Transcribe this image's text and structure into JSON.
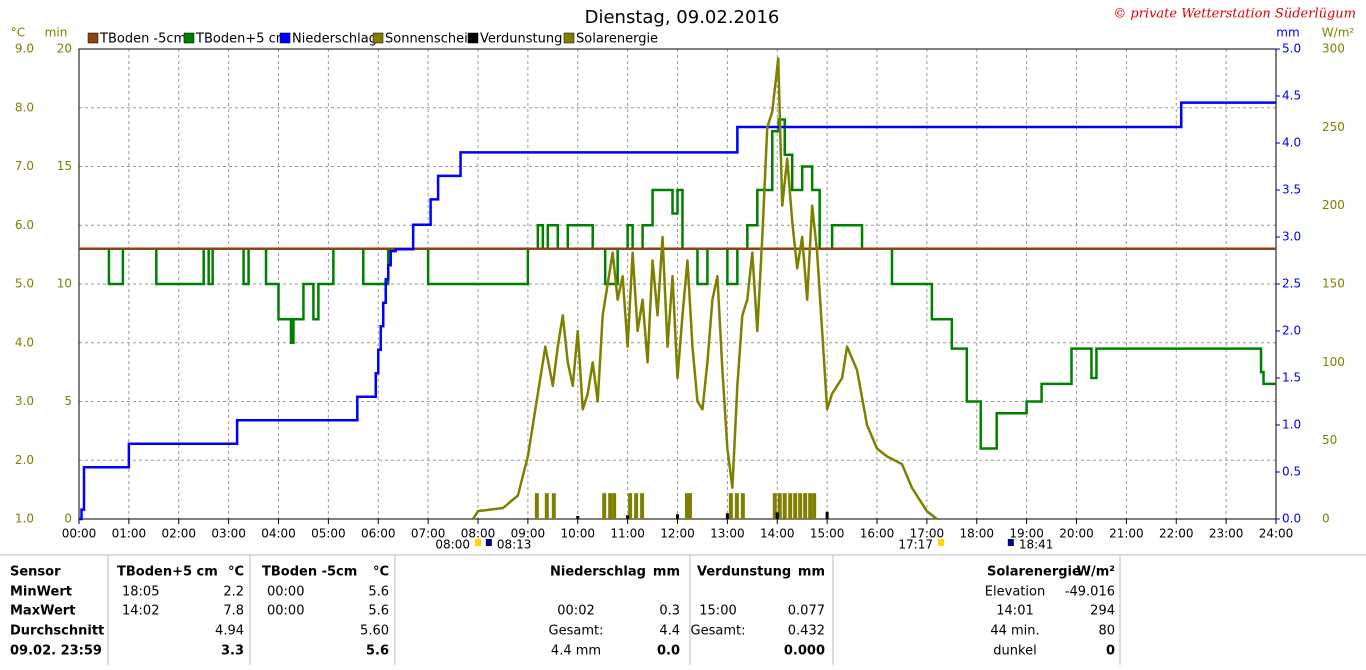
{
  "chart_data": {
    "type": "line",
    "title": "Dienstag, 09.02.2016",
    "copyright": "© private Wetterstation Süderlügum",
    "ylabel": "°C",
    "ylim": [
      1.0,
      9.0
    ],
    "yticks": [
      {
        "value": 1.0,
        "label": "1.0"
      },
      {
        "value": 2.0,
        "label": "2.0"
      },
      {
        "value": 3.0,
        "label": "3.0"
      },
      {
        "value": 4.0,
        "label": "4.0"
      },
      {
        "value": 5.0,
        "label": "5.0"
      },
      {
        "value": 6.0,
        "label": "6.0"
      },
      {
        "value": 7.0,
        "label": "7.0"
      },
      {
        "value": 8.0,
        "label": "8.0"
      },
      {
        "value": 9.0,
        "label": "9.0"
      }
    ],
    "y3label": "min",
    "y3lim": [
      0,
      20
    ],
    "y3ticks": [
      0,
      5,
      10,
      15,
      20
    ],
    "y2label": "mm",
    "y2lim": [
      0.0,
      5.0
    ],
    "y2ticks": [
      {
        "value": 0.0,
        "label": "0.0"
      },
      {
        "value": 0.5,
        "label": "0.5"
      },
      {
        "value": 1.0,
        "label": "1.0"
      },
      {
        "value": 1.5,
        "label": "1.5"
      },
      {
        "value": 2.0,
        "label": "2.0"
      },
      {
        "value": 2.5,
        "label": "2.5"
      },
      {
        "value": 3.0,
        "label": "3.0"
      },
      {
        "value": 3.5,
        "label": "3.5"
      },
      {
        "value": 4.0,
        "label": "4.0"
      },
      {
        "value": 4.5,
        "label": "4.5"
      },
      {
        "value": 5.0,
        "label": "5.0"
      }
    ],
    "y4label": "W/m²",
    "y4lim": [
      0,
      300
    ],
    "y4ticks": [
      0,
      50,
      100,
      150,
      200,
      250,
      300
    ],
    "xlim": [
      0,
      24
    ],
    "xticks": [
      {
        "value": 0,
        "label": "00:00"
      },
      {
        "value": 1,
        "label": "01:00"
      },
      {
        "value": 2,
        "label": "02:00"
      },
      {
        "value": 3,
        "label": "03:00"
      },
      {
        "value": 4,
        "label": "04:00"
      },
      {
        "value": 5,
        "label": "05:00"
      },
      {
        "value": 6,
        "label": "06:00"
      },
      {
        "value": 7,
        "label": "07:00"
      },
      {
        "value": 8,
        "label": "08:00"
      },
      {
        "value": 9,
        "label": "09:00"
      },
      {
        "value": 10,
        "label": "10:00"
      },
      {
        "value": 11,
        "label": "11:00"
      },
      {
        "value": 12,
        "label": "12:00"
      },
      {
        "value": 13,
        "label": "13:00"
      },
      {
        "value": 14,
        "label": "14:00"
      },
      {
        "value": 15,
        "label": "15:00"
      },
      {
        "value": 16,
        "label": "16:00"
      },
      {
        "value": 17,
        "label": "17:00"
      },
      {
        "value": 18,
        "label": "18:00"
      },
      {
        "value": 19,
        "label": "19:00"
      },
      {
        "value": 20,
        "label": "20:00"
      },
      {
        "value": 21,
        "label": "21:00"
      },
      {
        "value": 22,
        "label": "22:00"
      },
      {
        "value": 23,
        "label": "23:00"
      },
      {
        "value": 24,
        "label": "24:00"
      }
    ],
    "grid": true,
    "annotations": [
      {
        "label": "08:00",
        "x": 8.0,
        "anchor": "end"
      },
      {
        "label": "08:13",
        "x": 8.217,
        "anchor": "start"
      },
      {
        "label": "17:17",
        "x": 17.283,
        "anchor": "end"
      },
      {
        "label": "18:41",
        "x": 18.683,
        "anchor": "start"
      }
    ],
    "series": [
      {
        "name": "TBoden -5cm",
        "color": "#8b4513",
        "axis": "y",
        "style": "step",
        "x": [
          0,
          24
        ],
        "values": [
          5.6,
          5.6
        ]
      },
      {
        "name": "TBoden+5 cm",
        "color": "#008000",
        "axis": "y",
        "style": "step",
        "x": [
          0.5,
          0.6,
          0.88,
          1.55,
          2.5,
          2.6,
          2.68,
          3.3,
          3.4,
          3.75,
          4.0,
          4.25,
          4.3,
          4.5,
          4.7,
          4.8,
          5.1,
          5.7,
          6.2,
          7.0,
          9.0,
          9.2,
          9.3,
          9.4,
          9.6,
          9.8,
          10.3,
          10.55,
          10.8,
          11.0,
          11.1,
          11.3,
          11.5,
          11.9,
          12.0,
          12.1,
          12.4,
          12.6,
          13.0,
          13.2,
          13.4,
          13.6,
          13.9,
          14.03,
          14.15,
          14.3,
          14.5,
          14.7,
          14.85,
          15.1,
          15.7,
          16.3,
          17.1,
          17.5,
          17.8,
          18.08,
          18.4,
          19.0,
          19.3,
          19.9,
          20.3,
          20.4,
          23.7,
          23.75,
          24
        ],
        "values": [
          5.6,
          5.0,
          5.6,
          5.0,
          5.6,
          5.0,
          5.6,
          5.0,
          5.6,
          5.0,
          4.4,
          4.0,
          4.4,
          5.0,
          4.4,
          5.0,
          5.6,
          5.0,
          5.6,
          5.0,
          5.6,
          6.0,
          5.6,
          6.0,
          5.6,
          6.0,
          5.6,
          5.0,
          5.6,
          6.0,
          5.6,
          6.0,
          6.6,
          6.2,
          6.6,
          5.6,
          5.0,
          5.6,
          5.0,
          5.6,
          6.0,
          6.6,
          7.6,
          7.8,
          7.2,
          6.6,
          7.0,
          6.6,
          5.6,
          6.0,
          5.6,
          5.0,
          4.4,
          3.9,
          3.0,
          2.2,
          2.8,
          3.0,
          3.3,
          3.9,
          3.4,
          3.9,
          3.5,
          3.3,
          3.3
        ]
      },
      {
        "name": "Niederschlag",
        "color": "#0000ff",
        "axis": "y2",
        "style": "step",
        "x": [
          0,
          0.05,
          0.1,
          1.0,
          3.17,
          5.58,
          5.95,
          6.0,
          6.05,
          6.1,
          6.15,
          6.2,
          6.25,
          6.35,
          6.7,
          7.05,
          7.2,
          7.65,
          13.2,
          22.1,
          24
        ],
        "values": [
          0.0,
          0.1,
          0.55,
          0.8,
          1.05,
          1.3,
          1.55,
          1.8,
          2.05,
          2.3,
          2.55,
          2.7,
          2.85,
          2.87,
          3.13,
          3.4,
          3.65,
          3.9,
          4.17,
          4.43,
          4.43
        ]
      },
      {
        "name": "Sonnenschein",
        "color": "#808000",
        "axis": "y3",
        "style": "bar",
        "x": [
          9.18,
          9.38,
          9.52,
          10.53,
          10.65,
          10.73,
          11.05,
          11.17,
          11.29,
          12.19,
          12.25,
          13.07,
          13.19,
          13.31,
          13.95,
          14.05,
          14.15,
          14.26,
          14.36,
          14.46,
          14.56,
          14.66,
          14.74
        ],
        "values": [
          1.1,
          1.1,
          1.1,
          1.1,
          1.1,
          1.1,
          1.1,
          1.1,
          1.1,
          1.1,
          1.1,
          1.1,
          1.1,
          1.1,
          1.1,
          1.1,
          1.1,
          1.1,
          1.1,
          1.1,
          1.1,
          1.1,
          1.1
        ]
      },
      {
        "name": "Verdunstung",
        "color": "#000000",
        "axis": "y2",
        "style": "tick",
        "x": [
          10,
          11,
          12,
          13,
          14,
          15
        ],
        "values": [
          0.02,
          0.04,
          0.05,
          0.06,
          0.07,
          0.077
        ]
      },
      {
        "name": "Solarenergie",
        "color": "#808000",
        "axis": "y4",
        "style": "line",
        "x": [
          7.9,
          8.0,
          8.5,
          8.8,
          9.0,
          9.2,
          9.35,
          9.5,
          9.6,
          9.7,
          9.8,
          9.9,
          10.0,
          10.1,
          10.2,
          10.3,
          10.4,
          10.5,
          10.6,
          10.7,
          10.8,
          10.9,
          11.0,
          11.1,
          11.2,
          11.3,
          11.4,
          11.5,
          11.6,
          11.7,
          11.8,
          11.9,
          12.0,
          12.1,
          12.2,
          12.3,
          12.4,
          12.5,
          12.6,
          12.7,
          12.8,
          12.9,
          13.0,
          13.1,
          13.2,
          13.3,
          13.4,
          13.5,
          13.6,
          13.7,
          13.8,
          13.9,
          14.02,
          14.1,
          14.2,
          14.3,
          14.4,
          14.5,
          14.6,
          14.7,
          14.8,
          14.9,
          15.0,
          15.1,
          15.3,
          15.4,
          15.6,
          15.8,
          16.0,
          16.2,
          16.5,
          16.7,
          17.0,
          17.2
        ],
        "values": [
          0,
          5,
          7,
          15,
          40,
          80,
          110,
          85,
          110,
          130,
          100,
          85,
          120,
          70,
          80,
          100,
          75,
          130,
          150,
          170,
          140,
          155,
          110,
          170,
          120,
          140,
          100,
          165,
          130,
          180,
          110,
          155,
          90,
          130,
          165,
          110,
          75,
          70,
          100,
          140,
          155,
          95,
          45,
          20,
          85,
          130,
          140,
          170,
          120,
          180,
          250,
          260,
          294,
          200,
          230,
          190,
          160,
          180,
          140,
          200,
          170,
          120,
          70,
          80,
          90,
          110,
          95,
          60,
          45,
          40,
          35,
          20,
          5,
          0
        ]
      }
    ]
  },
  "table": {
    "sensor": {
      "header": [
        "Sensor",
        "TBoden+5 cm",
        "°C",
        "TBoden -5cm",
        "°C"
      ],
      "rows": [
        [
          "MinWert",
          "18:05",
          "2.2",
          "00:00",
          "5.6"
        ],
        [
          "MaxWert",
          "14:02",
          "7.8",
          "00:00",
          "5.6"
        ],
        [
          "Durchschnitt",
          null,
          "4.94",
          null,
          "5.60"
        ],
        [
          "09.02. 23:59",
          null,
          "3.3",
          null,
          "5.6"
        ]
      ]
    },
    "rain": {
      "header": [
        "Niederschlag",
        "mm"
      ],
      "rows": [
        [
          null,
          null
        ],
        [
          "00:02",
          "0.3"
        ],
        [
          "Gesamt:",
          "4.4"
        ],
        [
          "4.4 mm",
          "0.0"
        ]
      ]
    },
    "evap": {
      "header": [
        "Verdunstung",
        "mm"
      ],
      "rows": [
        [
          null,
          null
        ],
        [
          "15:00",
          "0.077"
        ],
        [
          "Gesamt:",
          "0.432"
        ],
        [
          null,
          "0.000"
        ]
      ]
    },
    "solar": {
      "header": [
        "Solarenergie",
        "W/m²"
      ],
      "rows": [
        [
          "Elevation",
          "-49.016"
        ],
        [
          "14:01",
          "294"
        ],
        [
          "44 min.",
          "80"
        ],
        [
          "dunkel",
          "0"
        ]
      ]
    }
  }
}
